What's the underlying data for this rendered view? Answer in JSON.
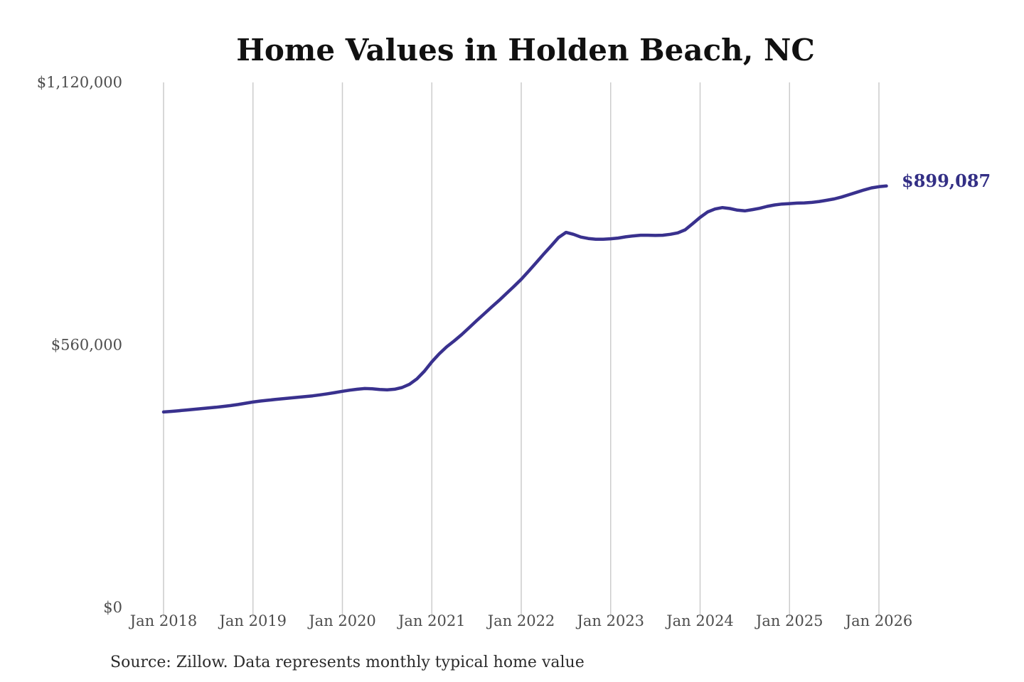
{
  "title": "Home Values in Holden Beach, NC",
  "annotation": {
    "label": "$899,087"
  },
  "source": "Source: Zillow. Data represents monthly typical home value",
  "colors": {
    "line": "#39318e",
    "annotation_text": "#332f85",
    "grid": "#cccccc",
    "axis_text": "#4d4d4d",
    "title_text": "#111111",
    "source_text": "#2b2b2b",
    "background": "#ffffff"
  },
  "chart_data": {
    "type": "line",
    "title": "Home Values in Holden Beach, NC",
    "xlabel": "",
    "ylabel": "",
    "ylim": [
      0,
      1120000
    ],
    "y_ticks": [
      0,
      560000,
      1120000
    ],
    "y_tick_labels": [
      "$0",
      "$560,000",
      "$1,120,000"
    ],
    "x_tick_labels": [
      "Jan 2018",
      "Jan 2019",
      "Jan 2020",
      "Jan 2021",
      "Jan 2022",
      "Jan 2023",
      "Jan 2024",
      "Jan 2025",
      "Jan 2026"
    ],
    "grid": "vertical-only",
    "legend": "none",
    "last_value": 899087,
    "last_value_label": "$899,087",
    "series": [
      {
        "name": "Monthly typical home value",
        "start_month": "2018-01",
        "months_per_point": 1,
        "values": [
          417000,
          418200,
          419500,
          421000,
          422500,
          424000,
          425500,
          427000,
          428700,
          430500,
          432800,
          435500,
          438200,
          440300,
          442000,
          443600,
          445100,
          446600,
          448100,
          449700,
          451400,
          453400,
          455800,
          458300,
          461000,
          463500,
          465500,
          467000,
          466500,
          465000,
          464000,
          465500,
          469000,
          476000,
          487500,
          504000,
          524000,
          541000,
          556000,
          568500,
          582000,
          596500,
          611500,
          626000,
          640500,
          654500,
          669500,
          684500,
          700000,
          717500,
          735500,
          753500,
          771000,
          789000,
          800000,
          796000,
          790000,
          787000,
          785500,
          785500,
          786500,
          788000,
          790500,
          792500,
          794000,
          794000,
          793500,
          794000,
          796000,
          799000,
          805500,
          818500,
          832000,
          843500,
          850000,
          853000,
          851000,
          847500,
          846000,
          848500,
          851500,
          855500,
          858500,
          860500,
          861500,
          862500,
          863000,
          864000,
          866000,
          868500,
          871500,
          875500,
          880500,
          885500,
          890500,
          895000,
          897500,
          899087
        ]
      }
    ]
  }
}
